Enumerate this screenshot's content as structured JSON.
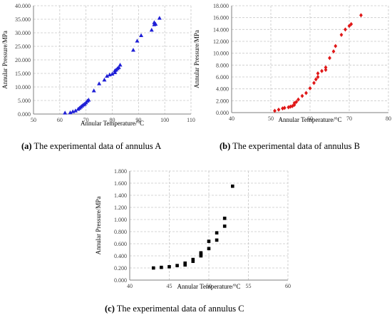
{
  "chart_data": [
    {
      "type": "scatter",
      "letter": "(a)",
      "caption": "The experimental data of annulus A",
      "xlabel": "Annular Temperature/°C",
      "ylabel": "Annular Pressure/MPa",
      "xlim": [
        50,
        110
      ],
      "ylim": [
        0,
        40
      ],
      "xticks": [
        "50",
        "60",
        "70",
        "80",
        "90",
        "100",
        "110"
      ],
      "yticks": [
        "0.000",
        "5.000",
        "10.000",
        "15.000",
        "20.000",
        "25.000",
        "30.000",
        "35.000",
        "40.000"
      ],
      "grid": true,
      "marker": "triangle",
      "color": "#1f1fd6",
      "x": [
        62,
        64,
        65,
        66,
        67,
        67.5,
        68,
        68.5,
        69,
        69.5,
        70,
        70.5,
        71,
        73,
        75,
        77,
        78,
        79,
        80,
        81,
        81,
        81.5,
        82,
        82.5,
        83,
        88,
        89.5,
        91,
        95,
        96,
        96,
        96.5,
        98
      ],
      "y": [
        0.4,
        0.5,
        0.9,
        1.2,
        1.8,
        2.2,
        2.6,
        3,
        3.4,
        3.7,
        4.2,
        4.8,
        5.2,
        8.6,
        11.2,
        12.6,
        14,
        14.5,
        14.8,
        15.3,
        16,
        16.3,
        16.8,
        17.2,
        18.1,
        23.6,
        27,
        29,
        31,
        33,
        33.8,
        33.2,
        35.4
      ]
    },
    {
      "type": "scatter",
      "letter": "(b)",
      "caption": "The experimental data of annulus B",
      "xlabel": "Annular Temperature/°C",
      "ylabel": "Annular Pressure/MPa",
      "xlim": [
        40,
        80
      ],
      "ylim": [
        0,
        18
      ],
      "xticks": [
        "40",
        "50",
        "60",
        "70",
        "80"
      ],
      "yticks": [
        "0.000",
        "2.000",
        "4.000",
        "6.000",
        "8.000",
        "10.000",
        "12.000",
        "14.000",
        "16.000",
        "18.000"
      ],
      "grid": true,
      "marker": "diamond",
      "color": "#e01818",
      "x": [
        51,
        52,
        53,
        53.5,
        54.5,
        55,
        55.5,
        56,
        56,
        56.5,
        57,
        58,
        59,
        60,
        61,
        61.5,
        62,
        62,
        63,
        64,
        64,
        65,
        66,
        66.5,
        68,
        69,
        70,
        70.5,
        73
      ],
      "y": [
        0.3,
        0.5,
        0.7,
        0.8,
        0.9,
        1.0,
        1.1,
        1.3,
        1.6,
        1.8,
        2.2,
        2.8,
        3.3,
        4.1,
        5.0,
        5.6,
        6.0,
        6.6,
        7.0,
        7.2,
        7.6,
        9.2,
        10.3,
        11.2,
        13.1,
        14.0,
        14.6,
        14.9,
        16.4
      ]
    },
    {
      "type": "scatter",
      "letter": "(c)",
      "caption": "The experimental data of annulus C",
      "xlabel": "Annular Temperature/°C",
      "ylabel": "Annular Pressure/MPa",
      "xlim": [
        40,
        60
      ],
      "ylim": [
        0,
        1.8
      ],
      "xticks": [
        "40",
        "45",
        "50",
        "55",
        "60"
      ],
      "yticks": [
        "0.000",
        "0.200",
        "0.400",
        "0.600",
        "0.800",
        "1.000",
        "1.200",
        "1.400",
        "1.600",
        "1.800"
      ],
      "grid": true,
      "marker": "square",
      "color": "#000000",
      "x": [
        43,
        44,
        45,
        46,
        47,
        47,
        48,
        48,
        49,
        49,
        49,
        50,
        50,
        51,
        51,
        52,
        52,
        53
      ],
      "y": [
        0.2,
        0.21,
        0.22,
        0.24,
        0.25,
        0.28,
        0.31,
        0.34,
        0.4,
        0.43,
        0.45,
        0.52,
        0.64,
        0.66,
        0.78,
        0.89,
        1.02,
        1.55
      ]
    }
  ]
}
